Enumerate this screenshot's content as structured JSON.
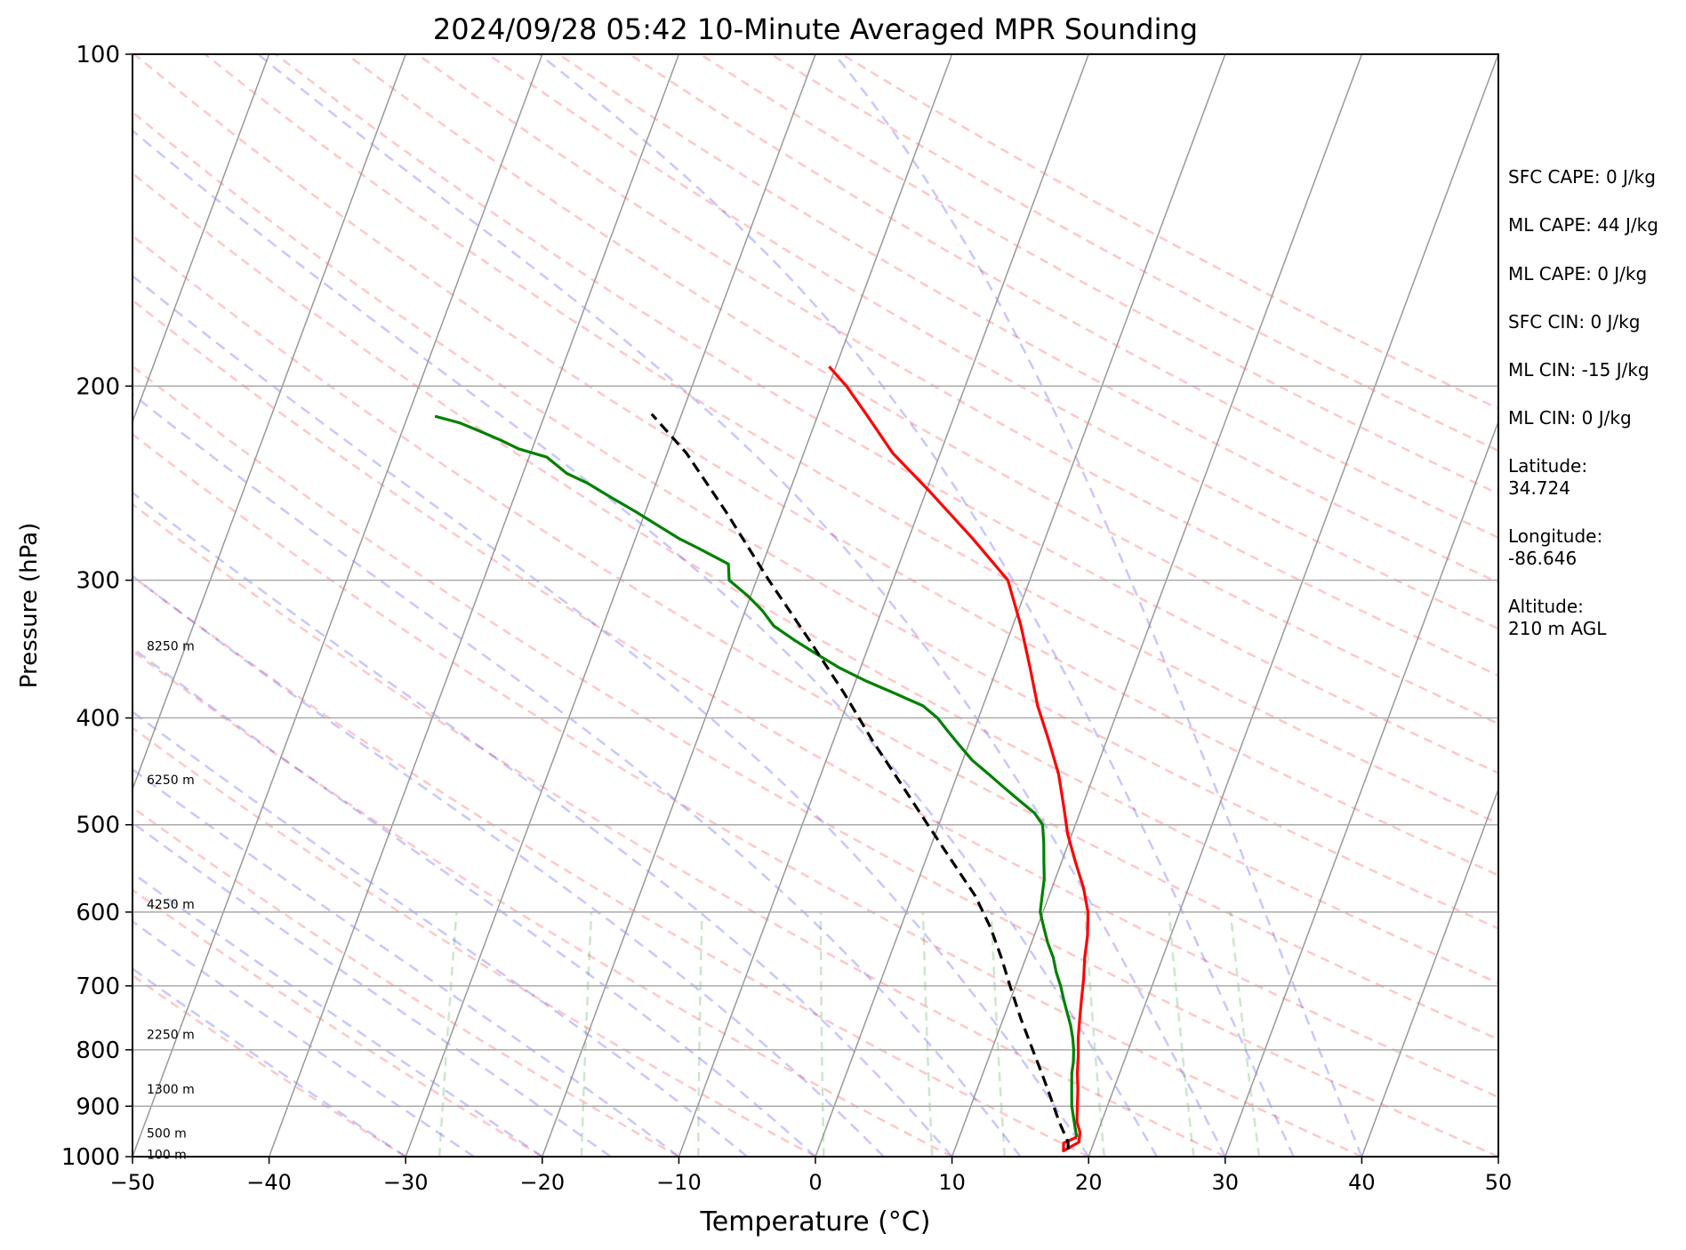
{
  "chart_data": {
    "type": "line",
    "diagram": "skew-t log-p",
    "title": "2024/09/28 05:42 10-Minute Averaged MPR Sounding",
    "xlabel": "Temperature (°C)",
    "ylabel": "Pressure (hPa)",
    "xlim": [
      -50,
      50
    ],
    "ylim": [
      1000,
      100
    ],
    "y_scale": "log",
    "x_ticks": [
      "−50",
      "−40",
      "−30",
      "−20",
      "−10",
      "0",
      "10",
      "20",
      "30",
      "40",
      "50"
    ],
    "y_ticks": [
      "100",
      "200",
      "300",
      "400",
      "500",
      "600",
      "700",
      "800",
      "900",
      "1000"
    ],
    "grid": true,
    "height_labels": [
      {
        "label": "8250 m",
        "pressure": 344
      },
      {
        "label": "6250 m",
        "pressure": 455
      },
      {
        "label": "4250 m",
        "pressure": 590
      },
      {
        "label": "2250 m",
        "pressure": 775
      },
      {
        "label": "1300 m",
        "pressure": 868
      },
      {
        "label": "500 m",
        "pressure": 952
      },
      {
        "label": "100 m",
        "pressure": 995
      }
    ],
    "series": [
      {
        "color": "#ff0000",
        "points": [
          [
            18.6,
            960
          ],
          [
            17.8,
            972
          ],
          [
            18.0,
            988
          ],
          [
            18.9,
            970
          ],
          [
            18.7,
            950
          ],
          [
            18.2,
            930
          ],
          [
            17.8,
            900
          ],
          [
            17.4,
            870
          ],
          [
            16.9,
            840
          ],
          [
            16.5,
            810
          ],
          [
            16.0,
            780
          ],
          [
            15.6,
            750
          ],
          [
            15.2,
            720
          ],
          [
            14.8,
            690
          ],
          [
            14.3,
            660
          ],
          [
            13.9,
            630
          ],
          [
            13.3,
            600
          ],
          [
            12.3,
            570
          ],
          [
            11.0,
            540
          ],
          [
            9.7,
            510
          ],
          [
            8.6,
            480
          ],
          [
            7.4,
            450
          ],
          [
            5.8,
            420
          ],
          [
            4.0,
            390
          ],
          [
            2.4,
            360
          ],
          [
            0.6,
            330
          ],
          [
            -1.6,
            300
          ],
          [
            -5.3,
            275
          ],
          [
            -9.6,
            250
          ],
          [
            -13.5,
            230
          ],
          [
            -16.5,
            212
          ],
          [
            -18.7,
            200
          ],
          [
            -20.5,
            192
          ]
        ]
      },
      {
        "color": "#008000",
        "points": [
          [
            18.6,
            960
          ],
          [
            18.2,
            940
          ],
          [
            17.8,
            920
          ],
          [
            17.4,
            900
          ],
          [
            17.1,
            880
          ],
          [
            16.8,
            860
          ],
          [
            16.5,
            840
          ],
          [
            16.3,
            820
          ],
          [
            16.0,
            800
          ],
          [
            15.6,
            780
          ],
          [
            15.1,
            760
          ],
          [
            14.5,
            740
          ],
          [
            13.9,
            720
          ],
          [
            13.3,
            700
          ],
          [
            12.6,
            680
          ],
          [
            12.0,
            660
          ],
          [
            11.2,
            640
          ],
          [
            10.5,
            620
          ],
          [
            9.8,
            600
          ],
          [
            9.5,
            580
          ],
          [
            9.2,
            560
          ],
          [
            8.7,
            540
          ],
          [
            8.2,
            520
          ],
          [
            7.6,
            500
          ],
          [
            6.7,
            488
          ],
          [
            5.2,
            475
          ],
          [
            3.7,
            462
          ],
          [
            2.3,
            450
          ],
          [
            0.7,
            437
          ],
          [
            -0.6,
            424
          ],
          [
            -1.8,
            412
          ],
          [
            -3.0,
            400
          ],
          [
            -4.4,
            390
          ],
          [
            -6.8,
            380
          ],
          [
            -9.3,
            370
          ],
          [
            -11.6,
            360
          ],
          [
            -13.6,
            350
          ],
          [
            -15.6,
            340
          ],
          [
            -17.5,
            330
          ],
          [
            -18.7,
            320
          ],
          [
            -20.2,
            310
          ],
          [
            -22.0,
            300
          ],
          [
            -22.5,
            290
          ],
          [
            -23.6,
            286
          ],
          [
            -25.3,
            280
          ],
          [
            -26.8,
            275
          ],
          [
            -28.6,
            268
          ],
          [
            -30.7,
            260
          ],
          [
            -33.0,
            252
          ],
          [
            -35.0,
            245
          ],
          [
            -36.8,
            240
          ],
          [
            -38.7,
            232
          ],
          [
            -41.0,
            228
          ],
          [
            -42.5,
            224
          ],
          [
            -44.2,
            220
          ],
          [
            -46.0,
            216
          ],
          [
            -48.0,
            213
          ]
        ]
      },
      {
        "color": "#000000",
        "dashed": true,
        "points": [
          [
            18.3,
            985
          ],
          [
            18.1,
            970
          ],
          [
            16.9,
            930
          ],
          [
            15.5,
            880
          ],
          [
            14.3,
            840
          ],
          [
            13.0,
            800
          ],
          [
            11.3,
            750
          ],
          [
            9.6,
            700
          ],
          [
            8.2,
            660
          ],
          [
            6.6,
            620
          ],
          [
            4.6,
            580
          ],
          [
            2.0,
            540
          ],
          [
            -0.8,
            500
          ],
          [
            -3.8,
            460
          ],
          [
            -7.1,
            420
          ],
          [
            -10.5,
            380
          ],
          [
            -14.5,
            340
          ],
          [
            -19.1,
            300
          ],
          [
            -24.1,
            260
          ],
          [
            -28.6,
            230
          ],
          [
            -32.2,
            212
          ]
        ]
      }
    ]
  },
  "side_info": [
    "SFC CAPE: 0 J/kg",
    "ML CAPE: 44 J/kg",
    "ML CAPE: 0 J/kg",
    "SFC CIN: 0 J/kg",
    "ML CIN: -15 J/kg",
    "ML CIN: 0 J/kg",
    "Latitude:\n34.724",
    "Longitude:\n-86.646",
    "Altitude:\n210 m AGL"
  ]
}
